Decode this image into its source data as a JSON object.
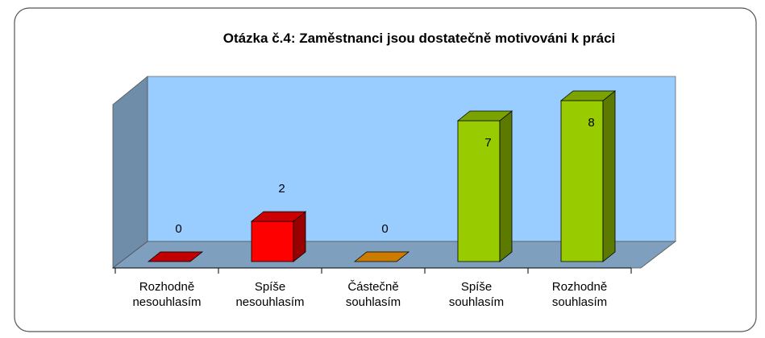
{
  "chart_data": {
    "type": "bar3d",
    "title": "Otázka č.4: Zaměstnanci jsou dostatečně motivováni k práci",
    "categories": [
      [
        "Rozhodně",
        "nesouhlasím"
      ],
      [
        "Spíše",
        "nesouhlasím"
      ],
      [
        "Částečně",
        "souhlasím"
      ],
      [
        "Spíše",
        "souhlasím"
      ],
      [
        "Rozhodně",
        "souhlasím"
      ]
    ],
    "values": [
      0,
      2,
      0,
      7,
      8
    ],
    "colors": [
      "#c00000",
      "#ff0000",
      "#cc7a00",
      "#99cc00",
      "#99cc00"
    ]
  }
}
